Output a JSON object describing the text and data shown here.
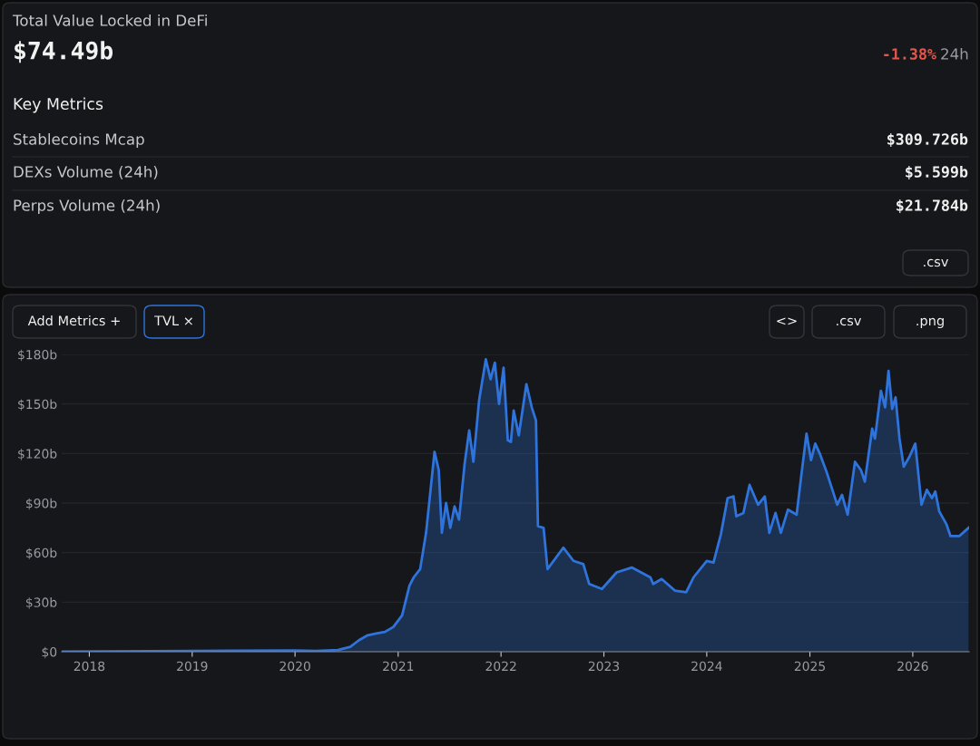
{
  "chart_data": [
    {
      "type": "other",
      "title": "Total Value Locked in DeFi",
      "annotations": [
        "$74.49b",
        "-1.38%",
        "24h",
        "Key Metrics",
        "Stablecoins Mcap",
        "$309.726b",
        "DEXs Volume (24h)",
        "$5.599b",
        "Perps Volume (24h)",
        "$21.784b",
        ".csv"
      ]
    },
    {
      "type": "area",
      "annotations": [
        "Add Metrics +",
        "TVL ×",
        "<>",
        ".csv",
        ".png"
      ],
      "x": [
        "2017-09-25",
        "2019-01-01",
        "2020-01-01",
        "2020-03-15",
        "2020-06-01",
        "2020-07-15",
        "2020-08-15",
        "2020-09-15",
        "2020-10-15",
        "2020-11-15",
        "2020-12-15",
        "2021-01-15",
        "2021-02-10",
        "2021-02-25",
        "2021-03-20",
        "2021-04-10",
        "2021-05-10",
        "2021-05-25",
        "2021-06-05",
        "2021-06-20",
        "2021-07-05",
        "2021-07-20",
        "2021-08-05",
        "2021-08-25",
        "2021-09-10",
        "2021-09-25",
        "2021-10-15",
        "2021-11-08",
        "2021-11-25",
        "2021-12-10",
        "2021-12-25",
        "2022-01-10",
        "2022-01-25",
        "2022-02-05",
        "2022-02-15",
        "2022-03-05",
        "2022-04-01",
        "2022-04-20",
        "2022-05-05",
        "2022-05-12",
        "2022-06-01",
        "2022-06-15",
        "2022-08-10",
        "2022-09-15",
        "2022-10-20",
        "2022-11-10",
        "2022-12-25",
        "2023-02-15",
        "2023-04-10",
        "2023-06-15",
        "2023-06-25",
        "2023-07-25",
        "2023-09-10",
        "2023-10-20",
        "2023-11-15",
        "2024-01-01",
        "2024-01-25",
        "2024-02-20",
        "2024-03-15",
        "2024-04-05",
        "2024-04-15",
        "2024-05-10",
        "2024-06-01",
        "2024-07-01",
        "2024-07-25",
        "2024-08-10",
        "2024-09-01",
        "2024-09-20",
        "2024-10-15",
        "2024-11-15",
        "2024-12-01",
        "2024-12-20",
        "2025-01-05",
        "2025-01-20",
        "2025-02-05",
        "2025-03-01",
        "2025-04-08",
        "2025-04-25",
        "2025-05-15",
        "2025-06-10",
        "2025-07-01",
        "2025-07-15",
        "2025-08-10",
        "2025-08-20",
        "2025-09-10",
        "2025-09-25",
        "2025-10-07",
        "2025-10-20",
        "2025-11-01",
        "2025-11-15",
        "2025-11-30",
        "2025-12-20",
        "2026-01-10",
        "2026-02-01",
        "2026-02-20",
        "2026-03-10",
        "2026-03-22",
        "2026-04-05",
        "2026-05-01",
        "2026-05-15",
        "2026-06-15",
        "2026-07-18"
      ],
      "series": [
        {
          "color": "#2f74dc",
          "values": [
            0,
            0.5,
            0.7,
            0.5,
            1,
            3,
            7,
            10,
            11,
            12,
            15,
            22,
            40,
            45,
            50,
            72,
            121,
            110,
            72,
            90,
            75,
            88,
            80,
            114,
            134,
            115,
            152,
            177,
            165,
            175,
            150,
            172,
            128,
            127,
            146,
            131,
            162,
            148,
            140,
            76,
            75,
            50,
            63,
            55,
            53,
            41,
            38,
            48,
            51,
            45,
            41,
            44,
            37,
            36,
            45,
            55,
            54,
            71,
            93,
            94,
            82,
            84,
            101,
            89,
            94,
            72,
            84,
            72,
            86,
            83,
            106,
            132,
            116,
            126,
            120,
            109,
            89,
            95,
            83,
            115,
            110,
            103,
            135,
            129,
            158,
            148,
            170,
            147,
            154,
            129,
            112,
            118,
            126,
            89,
            98,
            93,
            97,
            85,
            77,
            70,
            70,
            75
          ]
        }
      ],
      "xlim": [
        "2017-09-25",
        "2026-07-20"
      ],
      "xticks": [
        {
          "value": "2018",
          "label": "2018"
        },
        {
          "value": "2019",
          "label": "2019"
        },
        {
          "value": "2020",
          "label": "2020"
        },
        {
          "value": "2021",
          "label": "2021"
        },
        {
          "value": "2022",
          "label": "2022"
        },
        {
          "value": "2023",
          "label": "2023"
        },
        {
          "value": "2024",
          "label": "2024"
        },
        {
          "value": "2025",
          "label": "2025"
        },
        {
          "value": "2026",
          "label": "2026"
        }
      ],
      "ylim": [
        0,
        180
      ],
      "yticks": [
        {
          "value": 0,
          "label": "$0"
        },
        {
          "value": 30,
          "label": "$30b"
        },
        {
          "value": 60,
          "label": "$60b"
        },
        {
          "value": 90,
          "label": "$90b"
        },
        {
          "value": 120,
          "label": "$120b"
        },
        {
          "value": 150,
          "label": "$150b"
        },
        {
          "value": 180,
          "label": "$180b"
        }
      ],
      "grid": "y"
    }
  ]
}
